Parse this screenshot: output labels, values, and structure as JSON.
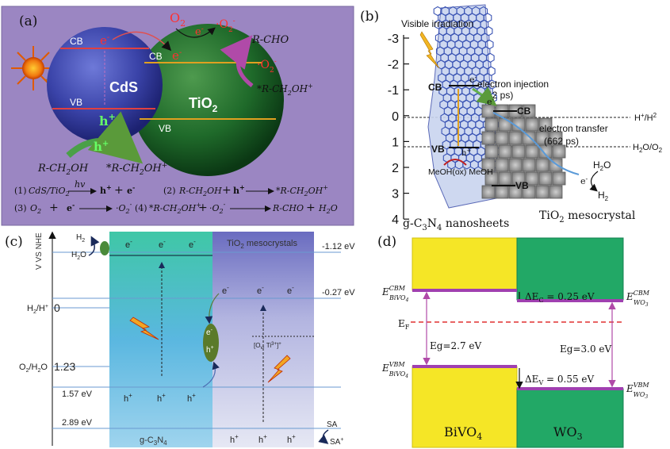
{
  "panel_a": {
    "label": "(a)",
    "o2": "O",
    "o2_sub": "2",
    "e_top": "e",
    "e_top_sup": "-",
    "o2_radical_top": "·O",
    "o2_radical_top_sub": "2",
    "o2_radical_top_sup": "-",
    "o2_radical_side": "·O",
    "o2_radical_side_sub": "2",
    "o2_radical_side_sup": "-",
    "rcho": "R-CHO",
    "rch2oh_plus_right": "*R-CH",
    "rch2oh_plus_right_sub": "2",
    "rch2oh_plus_right_tail": "OH",
    "rch2oh_plus_right_sup": "+",
    "cds_cb": "CB",
    "cds_vb": "VB",
    "cds_label": "CdS",
    "cds_e": "e",
    "cds_e_sup": "-",
    "cds_h": "h",
    "cds_h_sup": "+",
    "tio2_cb": "CB",
    "tio2_vb": "VB",
    "tio2_label": "TiO",
    "tio2_label_sub": "2",
    "tio2_e": "e",
    "tio2_e_sup": "-",
    "bottom_h": "h",
    "bottom_h_sup": "+",
    "bottom_left": "R-CH",
    "bottom_left_sub": "2",
    "bottom_left_tail": "OH",
    "bottom_right": "*R-CH",
    "bottom_right_sub": "2",
    "bottom_right_tail": "OH",
    "bottom_right_sup": "+",
    "eq1_num": "(1)",
    "eq1_a": "CdS/TiO",
    "eq1_a_sub": "2",
    "eq1_hv": "hv",
    "eq1_h": "h",
    "eq1_h_sup": "+",
    "eq1_plus": "+",
    "eq1_e": "e",
    "eq1_e_sup": "-",
    "eq2_num": "(2)",
    "eq2_a": "R-CH",
    "eq2_a_sub": "2",
    "eq2_a_tail": "OH",
    "eq2_plus": "+",
    "eq2_h": "h",
    "eq2_h_sup": "+",
    "eq2_p": "*R-CH",
    "eq2_p_sub": "2",
    "eq2_p_tail": "OH",
    "eq2_p_sup": "+",
    "eq3_num": "(3)",
    "eq3_a": "O",
    "eq3_a_sub": "2",
    "eq3_plus": "+",
    "eq3_e": "e",
    "eq3_e_sup": "-",
    "eq3_p": "·O",
    "eq3_p_sub": "2",
    "eq3_p_sup": "-",
    "eq4_num": "(4)",
    "eq4_a": "*R-CH",
    "eq4_a_sub": "2",
    "eq4_a_tail": "OH",
    "eq4_a_sup": "+",
    "eq4_plus1": "+",
    "eq4_b": "·O",
    "eq4_b_sub": "2",
    "eq4_b_sup": "-",
    "eq4_p": "R-CHO",
    "eq4_plus2": "+",
    "eq4_q": "H",
    "eq4_q_sub": "2",
    "eq4_q_tail": "O"
  },
  "panel_b": {
    "label": "(b)",
    "y_ticks": [
      "-3",
      "-2",
      "-1",
      "0",
      "1",
      "2",
      "3",
      "4"
    ],
    "visible": "Visible irradiation",
    "cb_left": "CB",
    "vb_left": "VB",
    "e_inj": "e",
    "e_inj_sup": "-",
    "injection": "electron injection",
    "injection_time": "(42 ps)",
    "cb_right": "CB",
    "vb_right": "VB",
    "transfer": "electron transfer",
    "transfer_time": "(662 ps)",
    "h_plus": "h",
    "h_plus_sup": "+",
    "meoh_ox": "MeOH(ox) MeOH",
    "h_couple": "H",
    "h_couple_sup": "+",
    "h_couple_tail": "/H",
    "h_couple_sup2": "2",
    "h2o_o2": "H",
    "h2o_o2_sub": "2",
    "h2o_o2_mid": "O/O",
    "h2o_o2_sub2": "2",
    "h2o_right": "H",
    "h2o_right_sub": "2",
    "h2o_right_tail": "O",
    "e_right": "e",
    "e_right_sup": "-",
    "h2_right": "H",
    "h2_right_sub": "2",
    "g_c3n4": "g-C",
    "g_c3n4_sub1": "3",
    "g_c3n4_mid": "N",
    "g_c3n4_sub2": "4",
    "g_c3n4_tail": " nanosheets",
    "tio2_meso": "TiO",
    "tio2_meso_sub": "2",
    "tio2_meso_tail": " mesocrystal"
  },
  "panel_c": {
    "label": "(c)",
    "y_axis": "V VS NHE",
    "h2": "H",
    "h2_sub": "2",
    "h2o": "H",
    "h2o_sub": "2",
    "h2o_tail": "O",
    "h2_hplus": "H",
    "h2_hplus_sub": "2",
    "h2_hplus_tail": "/H",
    "h2_hplus_sup": "+",
    "h2_hplus_val": "0",
    "o2_h2o": "O",
    "o2_h2o_sub": "2",
    "o2_h2o_mid": "/H",
    "o2_h2o_sub2": "2",
    "o2_h2o_tail": "O",
    "o2_h2o_val": "1.23",
    "left_157": "1.57 eV",
    "left_289": "2.89 eV",
    "right_112": "-1.12 eV",
    "right_027": "-0.27 eV",
    "tio2_meso": "TiO",
    "tio2_meso_sub": "2",
    "tio2_meso_tail": " mesocrystals",
    "e": "e",
    "e_sup": "-",
    "h": "h",
    "h_sup": "+",
    "vacancy": "[O",
    "vacancy_sub": "v",
    "vacancy_mid": ", Ti",
    "vacancy_sup": "3+",
    "vacancy_tail": "]",
    "vacancy_sup2": "+",
    "g_c3n4": "g-C",
    "g_c3n4_sub1": "3",
    "g_c3n4_mid": "N",
    "g_c3n4_sub2": "4",
    "sa": "SA",
    "sa_plus": "SA",
    "sa_plus_sup": "+"
  },
  "panel_d": {
    "label": "(d)",
    "e_cbm_bivo4": "E",
    "e_cbm_bivo4_sup": "CBM",
    "e_cbm_bivo4_sub": "BiVO",
    "e_cbm_bivo4_sub2": "4",
    "e_cbm_wo3": "E",
    "e_cbm_wo3_sup": "CBM",
    "e_cbm_wo3_sub": "WO",
    "e_cbm_wo3_sub2": "3",
    "delta_ec": "ΔE",
    "delta_ec_sub": "C",
    "delta_ec_val": " = 0.25 eV",
    "ef": "E",
    "ef_sub": "F",
    "eg_left": "Eg=2.7 eV",
    "eg_right": "Eg=3.0 eV",
    "e_vbm_bivo4": "E",
    "e_vbm_bivo4_sup": "VBM",
    "e_vbm_bivo4_sub": "BiVO",
    "e_vbm_bivo4_sub2": "4",
    "e_vbm_wo3": "E",
    "e_vbm_wo3_sup": "VBM",
    "e_vbm_wo3_sub": "WO",
    "e_vbm_wo3_sub2": "3",
    "delta_ev": "ΔE",
    "delta_ev_sub": "V",
    "delta_ev_val": " = 0.55 eV",
    "bivo4": "BiVO",
    "bivo4_sub": "4",
    "wo3": "WO",
    "wo3_sub": "3"
  }
}
